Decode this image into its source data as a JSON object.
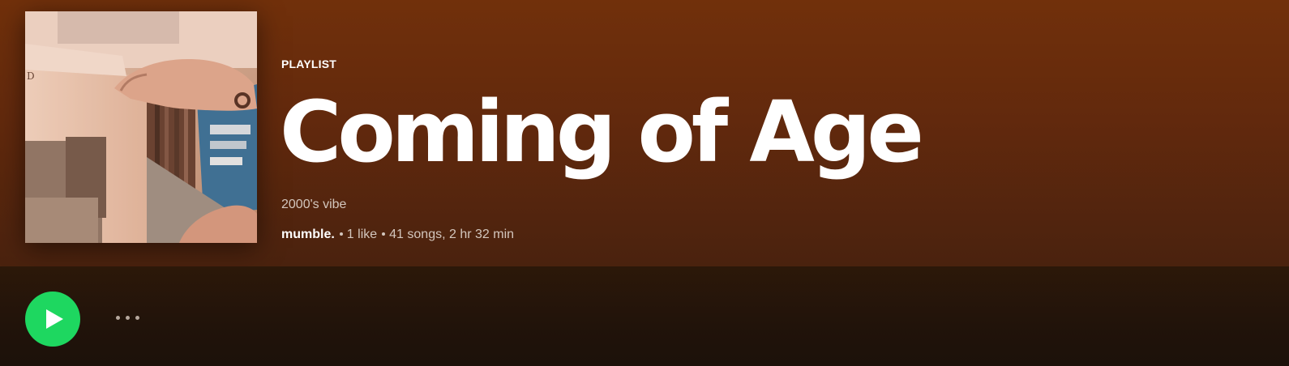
{
  "playlist": {
    "type_label": "PLAYLIST",
    "title": "Coming of Age",
    "description": "2000's vibe",
    "owner": "mumble.",
    "likes": "1 like",
    "songs_duration": "41 songs, 2 hr 32 min"
  },
  "cover": {
    "corner_text": "D"
  },
  "actions": {
    "play_icon": "play-icon",
    "more_icon": "more-horizontal-icon"
  },
  "colors": {
    "hero_bg": "#71300b",
    "play_green": "#1ed760",
    "text_primary": "#ffffff",
    "text_secondary": "#d3c6bd"
  }
}
